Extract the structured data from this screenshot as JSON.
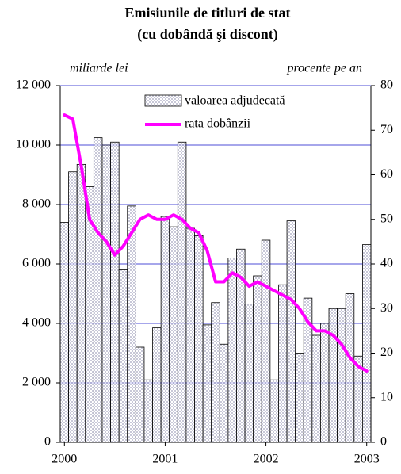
{
  "chart_data": {
    "type": "bar_line",
    "title": [
      "Emisiunile de titluri de stat",
      "(cu dobândă şi discont)"
    ],
    "y_label": "miliarde lei",
    "y2_label": "procente pe an",
    "categories": [
      "2000",
      null,
      null,
      null,
      null,
      null,
      null,
      null,
      null,
      null,
      null,
      null,
      "2001",
      null,
      null,
      null,
      null,
      null,
      null,
      null,
      null,
      null,
      null,
      null,
      "2002",
      null,
      null,
      null,
      null,
      null,
      null,
      null,
      null,
      null,
      null,
      null,
      "2003"
    ],
    "series": [
      {
        "name": "valoarea adjudecată",
        "color": "#c8c8d8",
        "values": [
          7400,
          9100,
          9350,
          8600,
          10250,
          10000,
          10100,
          5800,
          7950,
          3200,
          2100,
          3850,
          7600,
          7250,
          10100,
          7200,
          6950,
          3950,
          4700,
          3300,
          6200,
          6500,
          4650,
          5600,
          6800,
          2100,
          5300,
          7450,
          3000,
          4850,
          3600,
          4000,
          4500,
          4500,
          5000,
          2900,
          6650
        ]
      },
      {
        "name": "rata dobânzii",
        "color": "#ff00ff",
        "axis": "y2",
        "values": [
          73.4,
          72.5,
          62,
          50,
          47,
          45,
          42,
          44,
          47,
          50,
          51,
          50,
          50,
          51,
          50,
          48,
          47,
          43,
          36,
          36,
          38,
          37,
          35,
          36,
          35,
          34,
          33,
          32,
          30,
          27,
          25,
          25,
          24,
          22,
          19,
          17,
          16
        ]
      }
    ],
    "ylim": [
      0,
      12000
    ],
    "yticks": [
      0,
      {
        "value": 2000,
        "label": "2 000"
      },
      {
        "value": 4000,
        "label": "4 000"
      },
      {
        "value": 6000,
        "label": "6 000"
      },
      {
        "value": 8000,
        "label": "8 000"
      },
      {
        "value": 10000,
        "label": "10 000"
      },
      {
        "value": 12000,
        "label": "12 000"
      }
    ],
    "y2lim": [
      0,
      80
    ],
    "y2ticks": [
      0,
      10,
      20,
      30,
      40,
      50,
      60,
      70,
      80
    ],
    "grid": true,
    "grid_color": "#2a2ad0"
  }
}
